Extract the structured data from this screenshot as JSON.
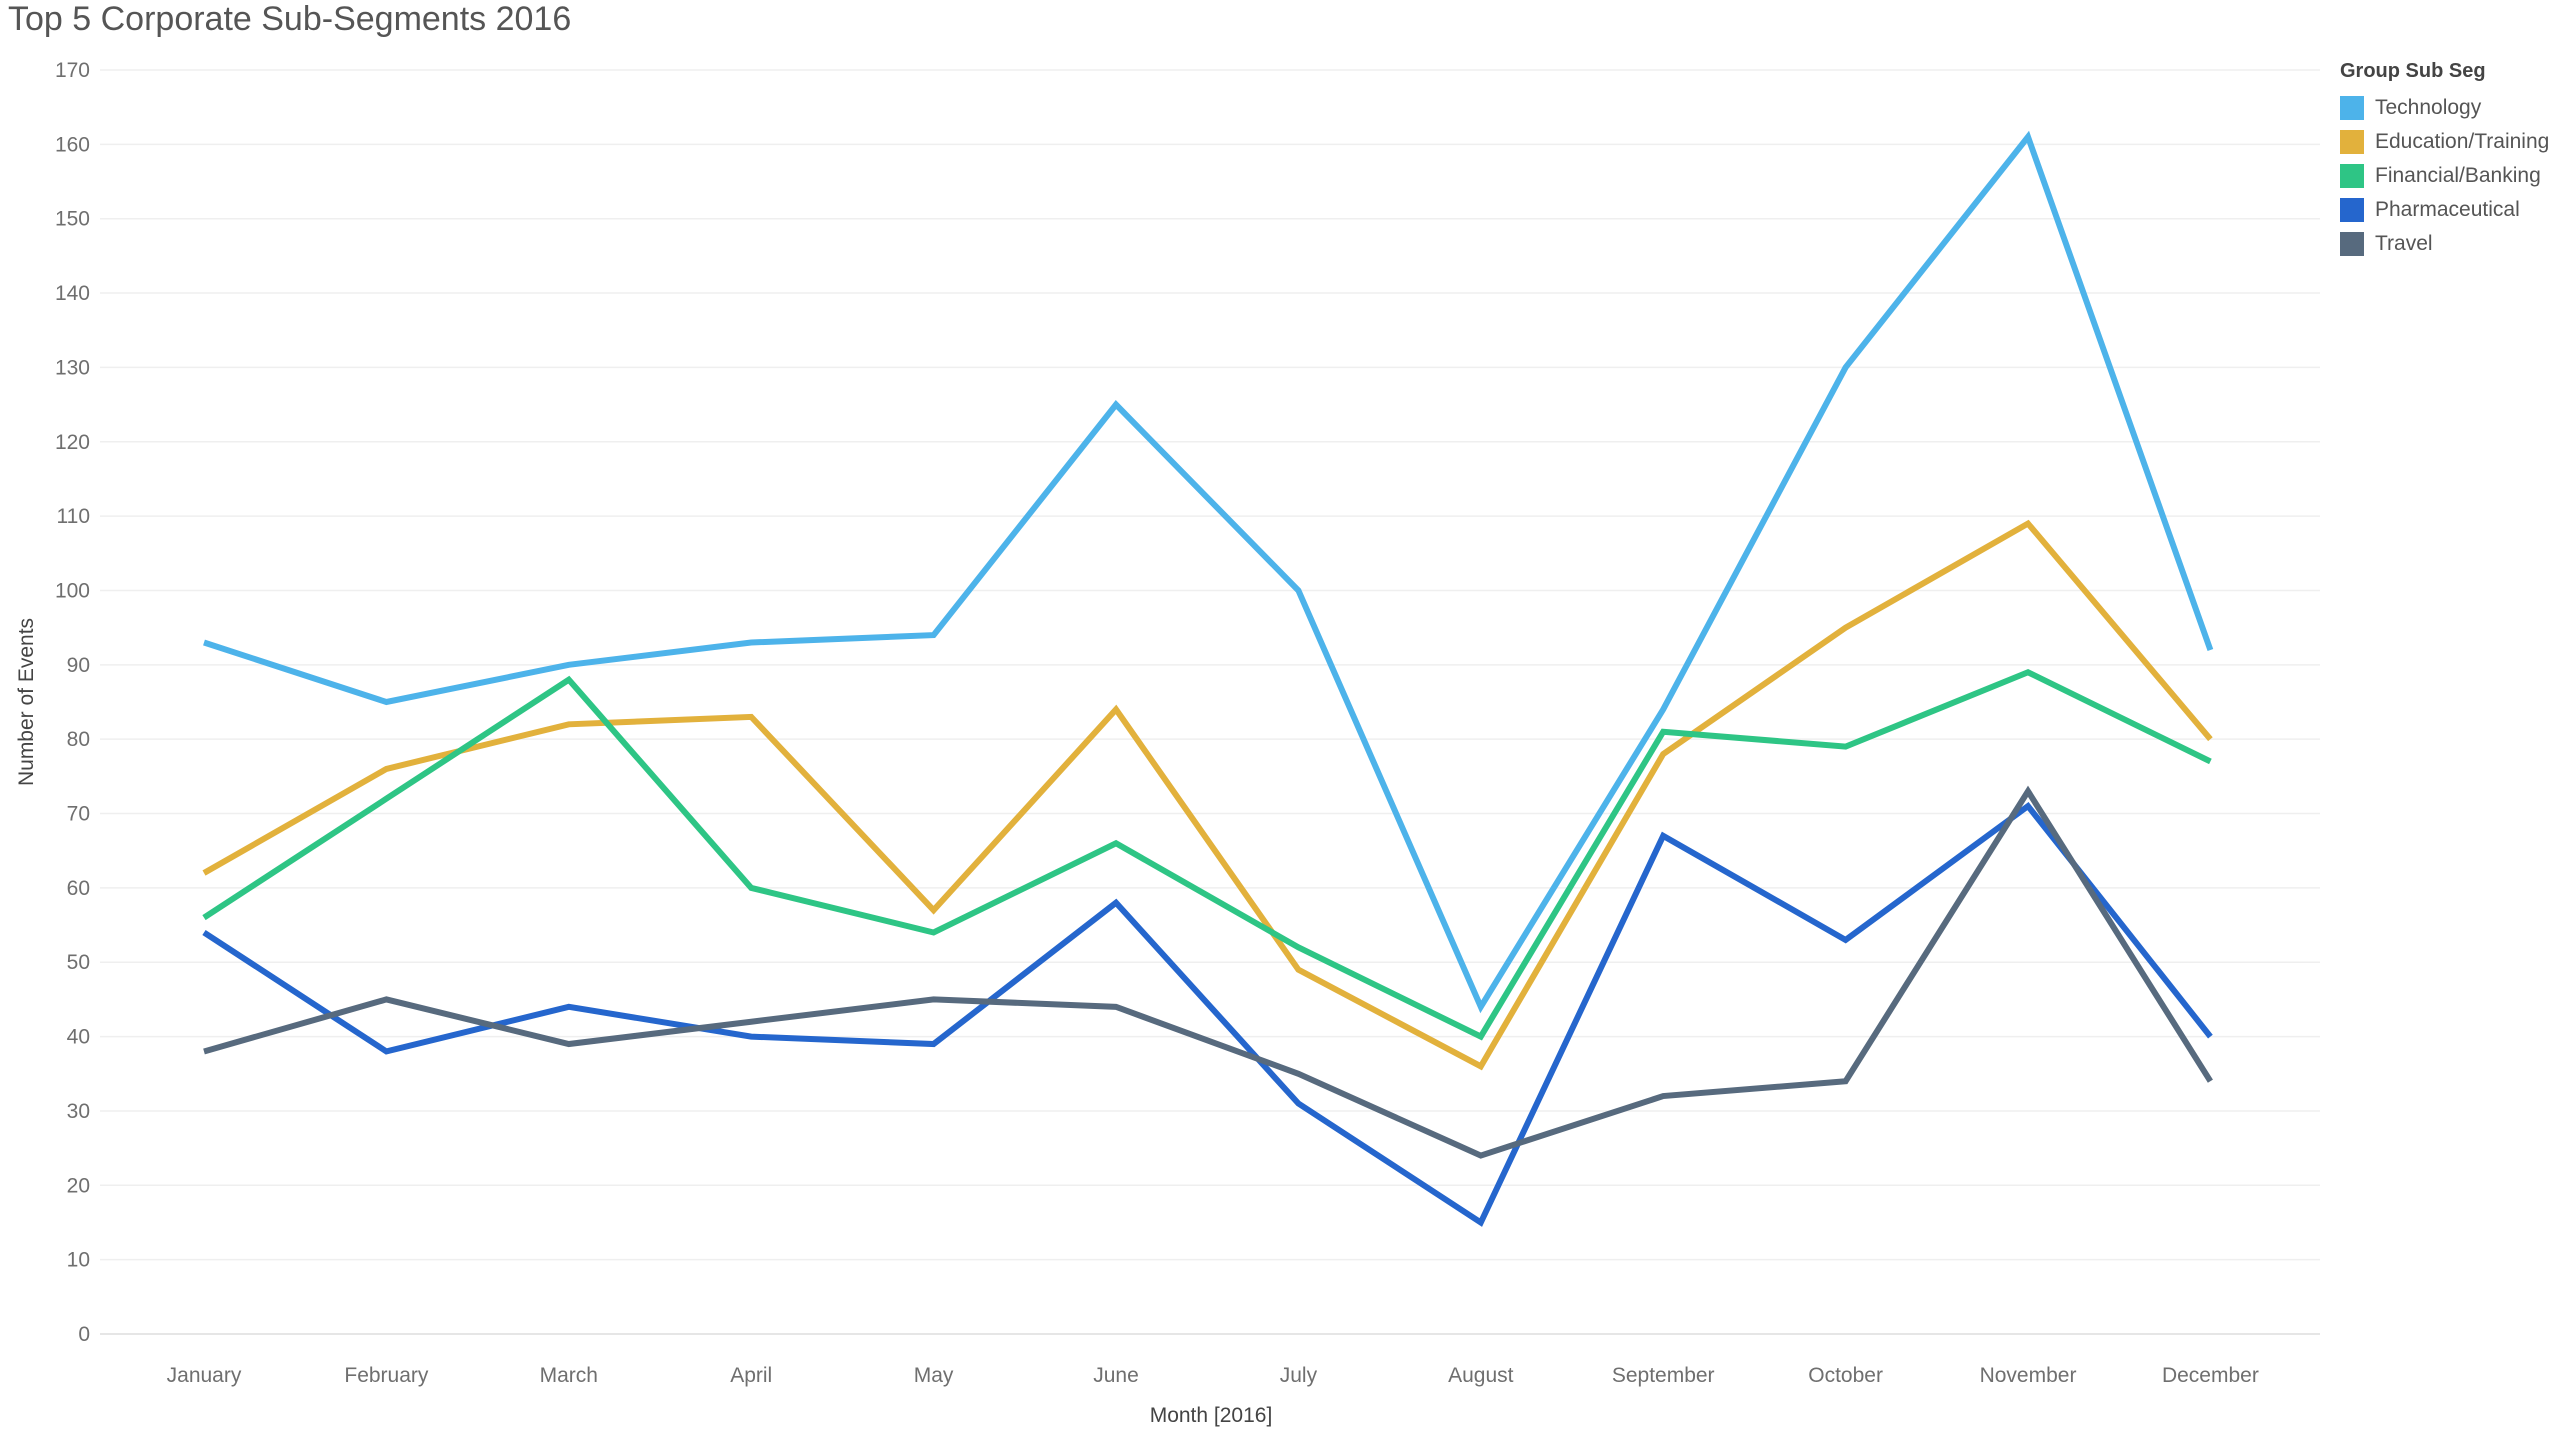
{
  "chart_data": {
    "type": "line",
    "title": "Top 5 Corporate Sub-Segments 2016",
    "xlabel": "Month [2016]",
    "ylabel": "Number of Events",
    "ylim": [
      0,
      170
    ],
    "y_ticks": [
      "0",
      "10",
      "20",
      "30",
      "40",
      "50",
      "60",
      "70",
      "80",
      "90",
      "100",
      "110",
      "120",
      "130",
      "140",
      "150",
      "160",
      "170"
    ],
    "grid": true,
    "legend_position": "top-right",
    "legend_title": "Group Sub Seg",
    "categories": [
      "January",
      "February",
      "March",
      "April",
      "May",
      "June",
      "July",
      "August",
      "September",
      "October",
      "November",
      "December"
    ],
    "series": [
      {
        "name": "Technology",
        "color": "#4db3ea",
        "values": [
          93,
          85,
          90,
          93,
          94,
          125,
          100,
          44,
          84,
          130,
          161,
          92
        ]
      },
      {
        "name": "Education/Training",
        "color": "#e2b13c",
        "values": [
          62,
          76,
          82,
          83,
          57,
          84,
          49,
          36,
          78,
          95,
          109,
          80
        ]
      },
      {
        "name": "Financial/Banking",
        "color": "#2ec585",
        "values": [
          56,
          72,
          88,
          60,
          54,
          66,
          52,
          40,
          81,
          79,
          89,
          77
        ]
      },
      {
        "name": "Pharmaceutical",
        "color": "#2566cd",
        "values": [
          54,
          38,
          44,
          40,
          39,
          58,
          31,
          15,
          67,
          53,
          71,
          40
        ]
      },
      {
        "name": "Travel",
        "color": "#576a7e",
        "values": [
          38,
          45,
          39,
          42,
          45,
          44,
          35,
          24,
          32,
          34,
          73,
          34
        ]
      }
    ]
  }
}
